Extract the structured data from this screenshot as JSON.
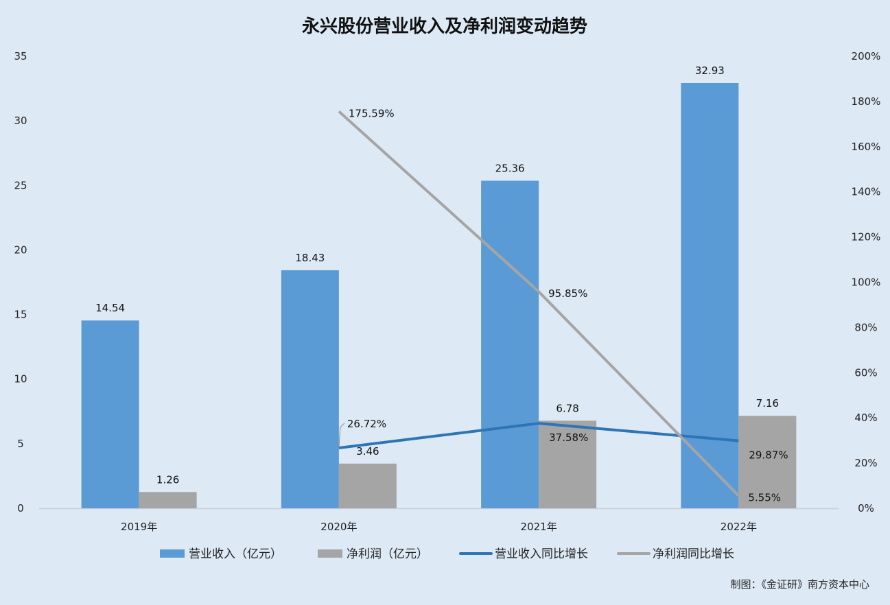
{
  "chart_data": {
    "type": "bar",
    "title": "永兴股份营业收入及净利润变动趋势",
    "categories": [
      "2019年",
      "2020年",
      "2021年",
      "2022年"
    ],
    "series": [
      {
        "name": "营业收入（亿元）",
        "kind": "bar",
        "axis": "left",
        "color": "#5b9bd5",
        "values": [
          14.54,
          18.43,
          25.36,
          32.93
        ],
        "labels": [
          "14.54",
          "18.43",
          "25.36",
          "32.93"
        ]
      },
      {
        "name": "净利润（亿元）",
        "kind": "bar",
        "axis": "left",
        "color": "#a5a5a5",
        "values": [
          1.26,
          3.46,
          6.78,
          7.16
        ],
        "labels": [
          "1.26",
          "3.46",
          "6.78",
          "7.16"
        ]
      },
      {
        "name": "营业收入同比增长",
        "kind": "line",
        "axis": "right",
        "color": "#2e75b6",
        "values": [
          null,
          26.72,
          37.58,
          29.87
        ],
        "labels": [
          null,
          "26.72%",
          "37.58%",
          "29.87%"
        ]
      },
      {
        "name": "净利润同比增长",
        "kind": "line",
        "axis": "right",
        "color": "#a5a5a5",
        "values": [
          null,
          175.59,
          95.85,
          5.55
        ],
        "labels": [
          null,
          "175.59%",
          "95.85%",
          "5.55%"
        ]
      }
    ],
    "y_left": {
      "min": 0,
      "max": 35,
      "ticks": [
        "0",
        "5",
        "10",
        "15",
        "20",
        "25",
        "30",
        "35"
      ]
    },
    "y_right": {
      "min": 0,
      "max": 200,
      "ticks": [
        "0%",
        "20%",
        "40%",
        "60%",
        "80%",
        "100%",
        "120%",
        "140%",
        "160%",
        "180%",
        "200%"
      ]
    },
    "grid": false,
    "legend_position": "bottom"
  },
  "source": "制图：《金证研》南方资本中心"
}
